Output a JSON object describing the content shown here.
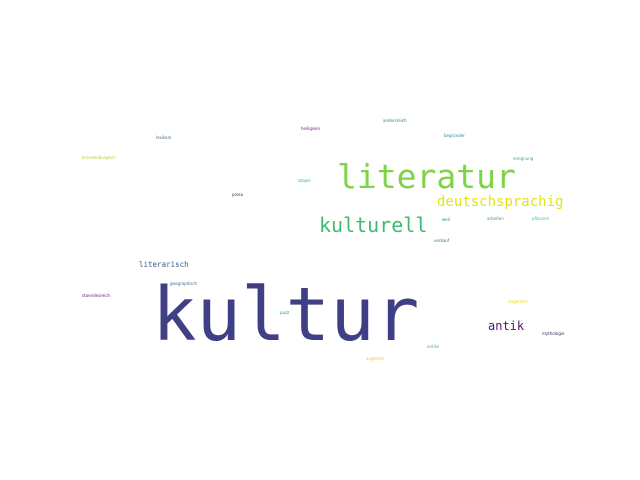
{
  "words": {
    "kultur": {
      "text": "kultur",
      "color": "#3f3f85"
    },
    "literatur": {
      "text": "literatur",
      "color": "#7ed348"
    },
    "kulturell": {
      "text": "kulturell",
      "color": "#3fbc72"
    },
    "deutschsprachig": {
      "text": "deutschsprachig",
      "color": "#e3e417"
    },
    "antik": {
      "text": "antik",
      "color": "#4f1764"
    },
    "literarisch": {
      "text": "literarisch",
      "color": "#3b5a8c"
    },
    "heiligsein": {
      "text": "heiligsein",
      "color": "#6a1a7a"
    },
    "anderes": {
      "text": "andersreich",
      "color": "#2f7f8e"
    },
    "begruender": {
      "text": "begründer",
      "color": "#2a8f8a"
    },
    "lexikon": {
      "text": "lexikonl",
      "color": "#3d6a8a"
    },
    "brandenburgisch": {
      "text": "brandenburgisch",
      "color": "#a8d23a"
    },
    "ereignung": {
      "text": "ereignung",
      "color": "#3fb06e"
    },
    "utopie": {
      "text": "utopie",
      "color": "#2fb0a0"
    },
    "prosa": {
      "text": "prosa",
      "color": "#44236a"
    },
    "weil": {
      "text": "weil",
      "color": "#3a7a9a"
    },
    "arbeiten": {
      "text": "arbeiten",
      "color": "#2fb07a"
    },
    "pflanzen": {
      "text": "pflanzen",
      "color": "#3fc0a0"
    },
    "verkauf": {
      "text": "verkauf",
      "color": "#3a6f8e"
    },
    "geographisch": {
      "text": "geographisch",
      "color": "#3f6f8c"
    },
    "staedtisch": {
      "text": "staendesreich",
      "color": "#581e6e"
    },
    "ungarisch": {
      "text": "ungarisch",
      "color": "#e6d62a"
    },
    "mythologie": {
      "text": "mythologie",
      "color": "#4a2470"
    },
    "puzz": {
      "text": "puzz",
      "color": "#3a8a8e"
    },
    "antike": {
      "text": "antike",
      "color": "#3fb890"
    },
    "augment": {
      "text": "augment",
      "color": "#e8d420"
    }
  }
}
